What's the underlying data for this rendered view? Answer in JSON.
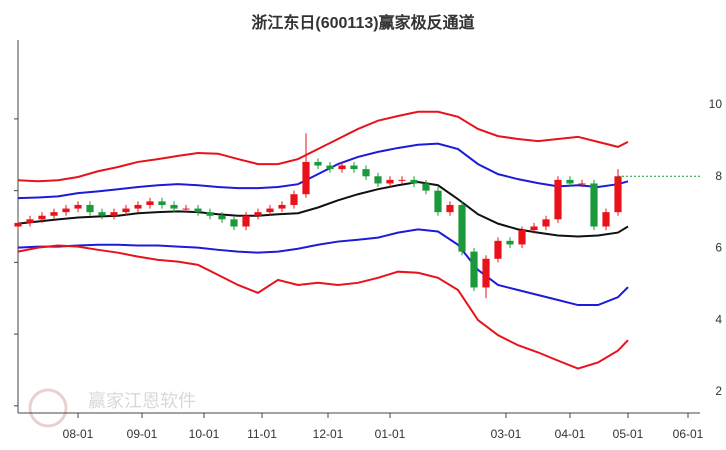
{
  "chart_data": {
    "type": "candlestick",
    "title": "浙江东日(600113)赢家极反通道",
    "watermark": "赢家江恩软件",
    "xlim": [
      0,
      341
    ],
    "xticks": [
      {
        "value": 30,
        "label": "08-01"
      },
      {
        "value": 62,
        "label": "09-01"
      },
      {
        "value": 93,
        "label": "10-01"
      },
      {
        "value": 122,
        "label": "11-01"
      },
      {
        "value": 155,
        "label": "12-01"
      },
      {
        "value": 186,
        "label": "01-01"
      },
      {
        "value": 244,
        "label": "03-01"
      },
      {
        "value": 276,
        "label": "04-01"
      },
      {
        "value": 305,
        "label": "05-01"
      },
      {
        "value": 335,
        "label": "06-01"
      }
    ],
    "ylim": [
      1.8,
      12.2
    ],
    "yticks": [
      2,
      4,
      6,
      8,
      10
    ],
    "up_color": "#e8121a",
    "down_color": "#1a9a3a",
    "candles": {
      "x": [
        0,
        6,
        12,
        18,
        24,
        30,
        36,
        42,
        48,
        54,
        60,
        66,
        72,
        78,
        84,
        90,
        96,
        102,
        108,
        114,
        120,
        126,
        132,
        138,
        144,
        150,
        156,
        162,
        168,
        174,
        180,
        186,
        192,
        198,
        204,
        210,
        216,
        222,
        228,
        234,
        240,
        246,
        252,
        258,
        264,
        270,
        276,
        282,
        288,
        294,
        300
      ],
      "open": [
        7.0,
        7.1,
        7.2,
        7.3,
        7.4,
        7.5,
        7.6,
        7.4,
        7.3,
        7.4,
        7.5,
        7.6,
        7.7,
        7.6,
        7.5,
        7.5,
        7.4,
        7.3,
        7.2,
        7.0,
        7.3,
        7.4,
        7.5,
        7.6,
        7.9,
        8.8,
        8.7,
        8.6,
        8.7,
        8.6,
        8.4,
        8.2,
        8.3,
        8.3,
        8.2,
        8.0,
        7.4,
        7.6,
        6.3,
        5.3,
        6.1,
        6.6,
        6.5,
        6.9,
        7.0,
        7.2,
        8.3,
        8.2,
        8.2,
        7.0,
        7.4
      ],
      "close": [
        7.1,
        7.2,
        7.3,
        7.4,
        7.5,
        7.6,
        7.4,
        7.3,
        7.4,
        7.5,
        7.6,
        7.7,
        7.6,
        7.5,
        7.5,
        7.4,
        7.3,
        7.2,
        7.0,
        7.3,
        7.4,
        7.5,
        7.6,
        7.9,
        8.8,
        8.7,
        8.6,
        8.7,
        8.6,
        8.4,
        8.2,
        8.3,
        8.3,
        8.2,
        8.0,
        7.4,
        7.6,
        6.3,
        5.3,
        6.1,
        6.6,
        6.5,
        6.9,
        7.0,
        7.2,
        8.3,
        8.2,
        8.2,
        7.0,
        7.4,
        8.4
      ],
      "high": [
        7.2,
        7.3,
        7.4,
        7.5,
        7.6,
        7.7,
        7.7,
        7.5,
        7.5,
        7.6,
        7.7,
        7.8,
        7.8,
        7.7,
        7.6,
        7.6,
        7.5,
        7.4,
        7.3,
        7.4,
        7.5,
        7.6,
        7.7,
        8.0,
        9.6,
        8.9,
        8.8,
        8.8,
        8.8,
        8.7,
        8.5,
        8.4,
        8.4,
        8.4,
        8.3,
        8.1,
        7.7,
        7.7,
        6.4,
        6.2,
        6.7,
        6.7,
        7.0,
        7.1,
        7.3,
        8.4,
        8.4,
        8.3,
        8.3,
        7.5,
        8.6
      ],
      "low": [
        6.9,
        7.0,
        7.1,
        7.2,
        7.3,
        7.4,
        7.3,
        7.2,
        7.2,
        7.3,
        7.4,
        7.5,
        7.5,
        7.4,
        7.4,
        7.3,
        7.2,
        7.1,
        6.9,
        6.9,
        7.2,
        7.3,
        7.4,
        7.5,
        7.8,
        8.6,
        8.5,
        8.5,
        8.5,
        8.3,
        8.1,
        8.1,
        8.2,
        8.1,
        7.9,
        7.3,
        7.3,
        6.2,
        5.2,
        5.0,
        6.0,
        6.4,
        6.4,
        6.8,
        6.9,
        7.1,
        8.1,
        8.1,
        6.9,
        6.9,
        7.3
      ]
    },
    "x": [
      0,
      10,
      20,
      30,
      40,
      50,
      60,
      70,
      80,
      90,
      100,
      110,
      120,
      130,
      140,
      150,
      160,
      170,
      180,
      190,
      200,
      210,
      220,
      230,
      240,
      250,
      260,
      270,
      280,
      290,
      300,
      305
    ],
    "series": [
      {
        "color": "#e8121a",
        "values": [
          8.29,
          8.26,
          8.29,
          8.38,
          8.54,
          8.66,
          8.8,
          8.88,
          8.97,
          9.05,
          9.03,
          8.88,
          8.74,
          8.74,
          8.88,
          9.16,
          9.44,
          9.72,
          9.95,
          10.08,
          10.2,
          10.2,
          10.06,
          9.72,
          9.52,
          9.44,
          9.38,
          9.44,
          9.5,
          9.36,
          9.22,
          9.36
        ]
      },
      {
        "color": "#1c1cd8",
        "values": [
          7.79,
          7.81,
          7.84,
          7.93,
          7.98,
          8.04,
          8.1,
          8.15,
          8.18,
          8.15,
          8.1,
          8.07,
          8.07,
          8.1,
          8.18,
          8.46,
          8.74,
          8.94,
          9.08,
          9.19,
          9.28,
          9.31,
          9.16,
          8.74,
          8.46,
          8.32,
          8.21,
          8.12,
          8.15,
          8.1,
          8.18,
          8.26
        ]
      },
      {
        "color": "#111111",
        "values": [
          7.08,
          7.14,
          7.2,
          7.25,
          7.28,
          7.3,
          7.37,
          7.4,
          7.42,
          7.4,
          7.34,
          7.3,
          7.3,
          7.34,
          7.37,
          7.53,
          7.73,
          7.9,
          8.04,
          8.15,
          8.24,
          8.15,
          7.76,
          7.34,
          7.08,
          6.92,
          6.83,
          6.75,
          6.72,
          6.75,
          6.83,
          7.0
        ]
      },
      {
        "color": "#1c1cd8",
        "values": [
          6.41,
          6.44,
          6.44,
          6.47,
          6.49,
          6.49,
          6.47,
          6.47,
          6.44,
          6.41,
          6.35,
          6.3,
          6.27,
          6.3,
          6.38,
          6.49,
          6.58,
          6.63,
          6.69,
          6.83,
          6.92,
          6.86,
          6.49,
          5.79,
          5.37,
          5.23,
          5.09,
          4.95,
          4.81,
          4.81,
          5.03,
          5.31
        ]
      },
      {
        "color": "#e8121a",
        "values": [
          6.3,
          6.41,
          6.47,
          6.44,
          6.35,
          6.27,
          6.16,
          6.07,
          6.02,
          5.93,
          5.65,
          5.37,
          5.15,
          5.51,
          5.37,
          5.43,
          5.37,
          5.43,
          5.57,
          5.74,
          5.71,
          5.57,
          5.23,
          4.39,
          3.97,
          3.69,
          3.49,
          3.26,
          3.04,
          3.21,
          3.54,
          3.83
        ]
      }
    ]
  }
}
